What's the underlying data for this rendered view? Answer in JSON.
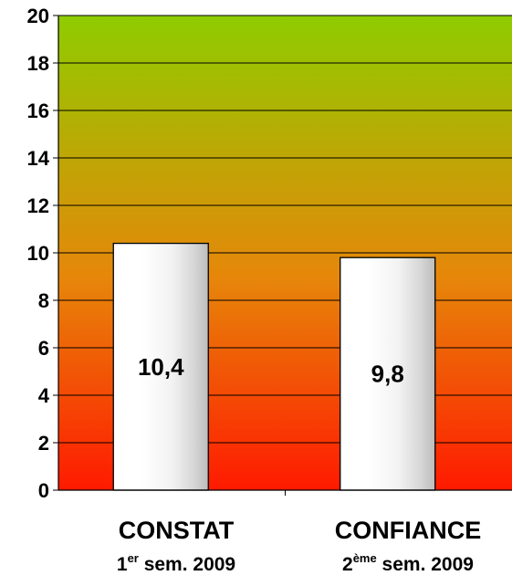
{
  "chart_data": {
    "type": "bar",
    "categories": [
      "CONSTAT",
      "CONFIANCE"
    ],
    "category_subtitles": [
      {
        "number": "1",
        "superscript": "er",
        "rest": " sem. 2009"
      },
      {
        "number": "2",
        "superscript": "ème",
        "rest": " sem. 2009"
      }
    ],
    "values": [
      10.4,
      9.8
    ],
    "data_labels": [
      "10,4",
      "9,8"
    ],
    "yticks": [
      "0",
      "2",
      "4",
      "6",
      "8",
      "10",
      "12",
      "14",
      "16",
      "18",
      "20"
    ],
    "ylim": [
      0,
      20
    ],
    "grid": true,
    "legend": "none",
    "title": "",
    "xlabel": "",
    "ylabel": "",
    "colors": {
      "background_top": "#8fcc00",
      "background_middle": "#e6870a",
      "background_bottom": "#ff1a00",
      "bar_fill": "#ffffff",
      "bar_stroke": "#000000"
    }
  }
}
